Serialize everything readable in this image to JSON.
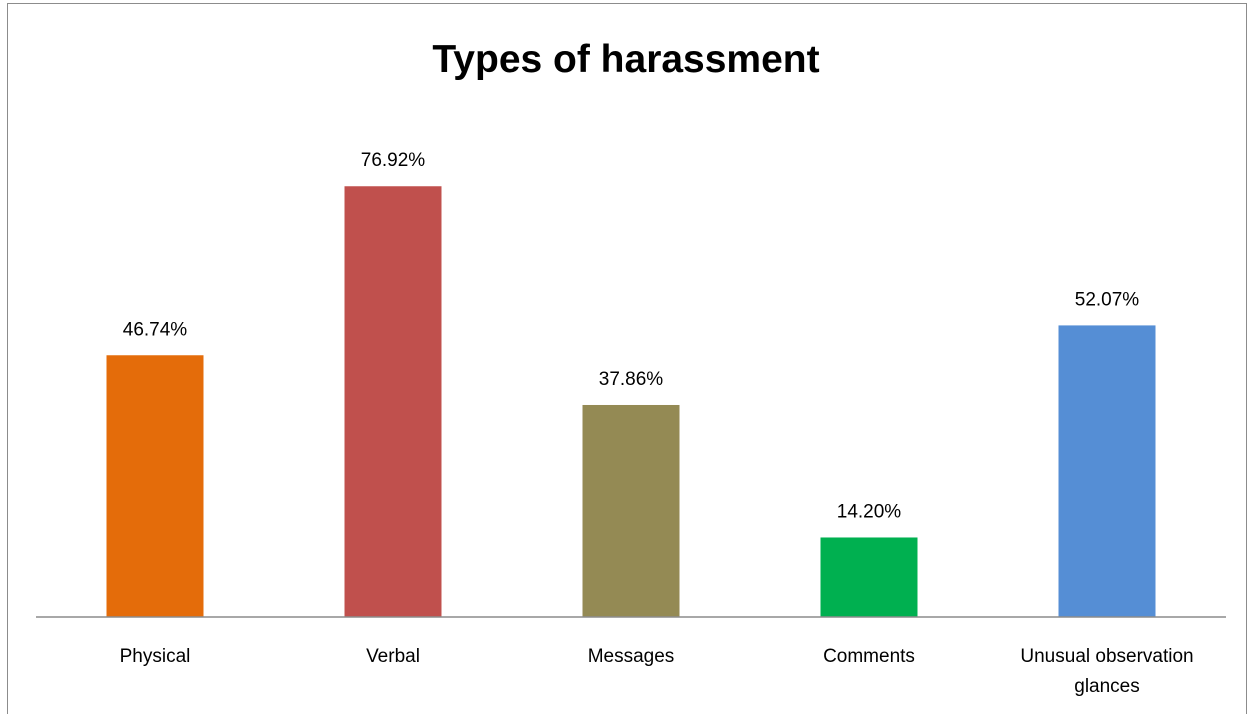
{
  "chart_data": {
    "type": "bar",
    "title": "Types of harassment",
    "categories": [
      "Physical",
      "Verbal",
      "Messages",
      "Comments",
      "Unusual observation glances"
    ],
    "category_lines": [
      [
        "Physical"
      ],
      [
        "Verbal"
      ],
      [
        "Messages"
      ],
      [
        "Comments"
      ],
      [
        "Unusual observation",
        "glances"
      ]
    ],
    "values": [
      46.74,
      76.92,
      37.86,
      14.2,
      52.07
    ],
    "data_labels": [
      "46.74%",
      "76.92%",
      "37.86%",
      "14.20%",
      "52.07%"
    ],
    "colors": [
      "#e46c0a",
      "#c0504d",
      "#948a54",
      "#00b050",
      "#558ed5"
    ],
    "ylim": [
      0,
      100
    ],
    "grid": false,
    "legend": "none",
    "xlabel": "",
    "ylabel": ""
  }
}
